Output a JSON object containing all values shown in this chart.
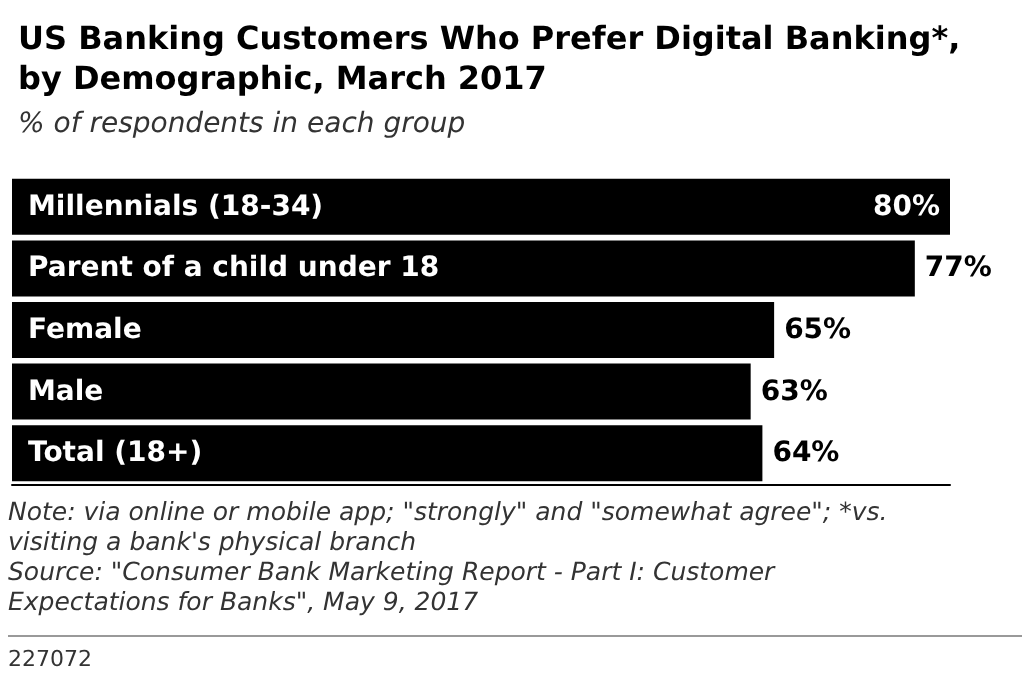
{
  "chart_data": {
    "type": "bar",
    "orientation": "horizontal",
    "title": "US Banking Customers Who Prefer Digital Banking*,\nby Demographic, March 2017",
    "subtitle": "% of respondents in each group",
    "categories": [
      "Millennials (18-34)",
      "Parent of a child under 18",
      "Female",
      "Male",
      "Total (18+)"
    ],
    "values": [
      80,
      77,
      65,
      63,
      64
    ],
    "value_labels": [
      "80%",
      "77%",
      "65%",
      "63%",
      "64%"
    ],
    "color": "#000000",
    "annotations": [
      "Note: via online or mobile app; \"strongly\" and \"somewhat agree\"; *vs.\nvisiting a bank's physical branch\nSource: \"Consumer Bank Marketing Report - Part I: Customer\nExpectations for Banks\", May 9, 2017",
      "227072"
    ]
  }
}
